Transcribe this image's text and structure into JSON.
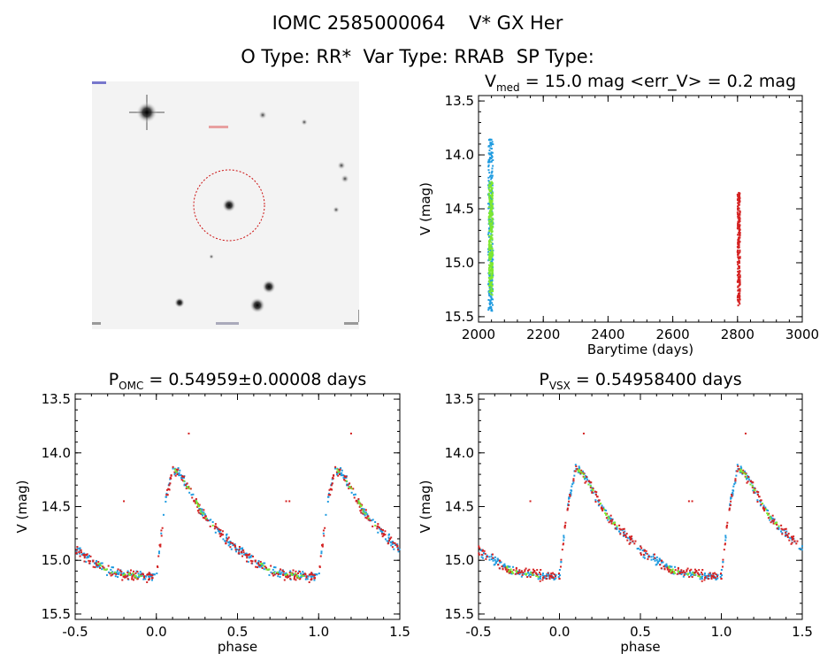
{
  "header": {
    "title_line1": "IOMC 2585000064    V* GX Her",
    "title_line2": "O Type: RR*  Var Type: RRAB  SP Type:"
  },
  "colors": {
    "series_blue": "#1f9be0",
    "series_green": "#7de830",
    "series_red": "#d42222",
    "circle": "#cc1111"
  },
  "chart_data": [
    {
      "type": "scatter",
      "title_parts": {
        "prefix": "V",
        "sub": "med",
        "rest": " = 15.0 mag <err_V> = 0.2 mag"
      },
      "xlabel": "Barytime (days)",
      "ylabel": "V (mag)",
      "xlim": [
        2000,
        3000
      ],
      "ylim": [
        15.55,
        13.45
      ],
      "y_inverted": true,
      "x_ticks": [
        2000,
        2200,
        2400,
        2600,
        2800,
        3000
      ],
      "x_tick_labels": [
        "2000",
        "2200",
        "2400",
        "2600",
        "2800",
        "3000"
      ],
      "y_ticks": [
        13.5,
        14.0,
        14.5,
        15.0,
        15.5
      ],
      "y_tick_labels": [
        "13.5",
        "14.0",
        "14.5",
        "15.0",
        "15.5"
      ],
      "series": [
        {
          "color": "blue",
          "x_range": [
            2030,
            2045
          ],
          "y_range": [
            13.85,
            15.45
          ]
        },
        {
          "color": "green",
          "x_range": [
            2032,
            2044
          ],
          "y_range": [
            14.25,
            15.3
          ]
        },
        {
          "color": "red",
          "x_range": [
            2800,
            2808
          ],
          "y_range": [
            14.35,
            15.4
          ]
        }
      ]
    },
    {
      "type": "scatter",
      "title_parts": {
        "prefix": "P",
        "sub": "OMC",
        "rest": " = 0.54959±0.00008 days"
      },
      "xlabel": "phase",
      "ylabel": "V (mag)",
      "xlim": [
        -0.5,
        1.5
      ],
      "ylim": [
        15.55,
        13.45
      ],
      "y_inverted": true,
      "x_ticks": [
        -0.5,
        0.0,
        0.5,
        1.0,
        1.5
      ],
      "x_tick_labels": [
        "-0.5",
        "0.0",
        "0.5",
        "1.0",
        "1.5"
      ],
      "y_ticks": [
        13.5,
        14.0,
        14.5,
        15.0,
        15.5
      ],
      "y_tick_labels": [
        "13.5",
        "14.0",
        "14.5",
        "15.0",
        "15.5"
      ],
      "light_curve": {
        "phase_points": [
          [
            0.0,
            15.15
          ],
          [
            0.05,
            14.5
          ],
          [
            0.1,
            14.15
          ],
          [
            0.15,
            14.2
          ],
          [
            0.3,
            14.6
          ],
          [
            0.5,
            14.9
          ],
          [
            0.7,
            15.1
          ],
          [
            0.9,
            15.15
          ],
          [
            1.0,
            15.15
          ]
        ],
        "outliers": [
          [
            0.2,
            13.82
          ],
          [
            -0.2,
            14.45
          ],
          [
            0.82,
            14.45
          ]
        ]
      }
    },
    {
      "type": "scatter",
      "title_parts": {
        "prefix": "P",
        "sub": "VSX",
        "rest": " = 0.54958400 days"
      },
      "xlabel": "phase",
      "ylabel": "V (mag)",
      "xlim": [
        -0.5,
        1.5
      ],
      "ylim": [
        15.55,
        13.45
      ],
      "y_inverted": true,
      "x_ticks": [
        -0.5,
        0.0,
        0.5,
        1.0,
        1.5
      ],
      "x_tick_labels": [
        "-0.5",
        "0.0",
        "0.5",
        "1.0",
        "1.5"
      ],
      "y_ticks": [
        13.5,
        14.0,
        14.5,
        15.0,
        15.5
      ],
      "y_tick_labels": [
        "13.5",
        "14.0",
        "14.5",
        "15.0",
        "15.5"
      ],
      "light_curve": {
        "phase_points": [
          [
            0.0,
            15.15
          ],
          [
            0.05,
            14.5
          ],
          [
            0.1,
            14.15
          ],
          [
            0.15,
            14.2
          ],
          [
            0.3,
            14.6
          ],
          [
            0.5,
            14.9
          ],
          [
            0.7,
            15.1
          ],
          [
            0.9,
            15.15
          ],
          [
            1.0,
            15.15
          ]
        ],
        "outliers": [
          [
            0.15,
            13.82
          ],
          [
            -0.18,
            14.45
          ],
          [
            0.8,
            14.45
          ]
        ]
      }
    }
  ]
}
